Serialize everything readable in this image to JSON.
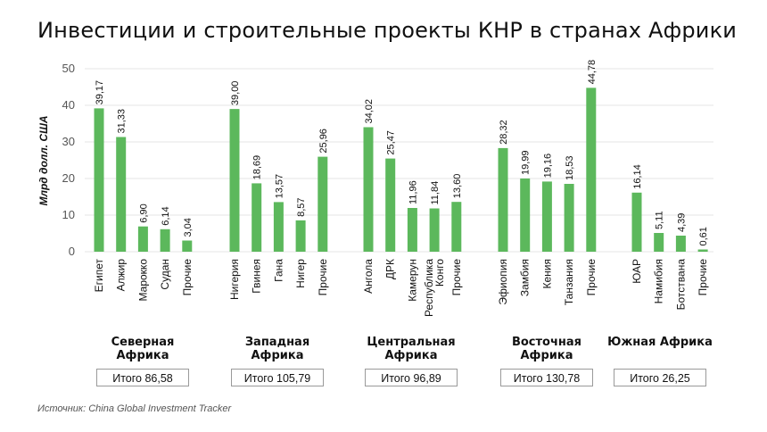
{
  "title": "Инвестиции и строительные проекты КНР в странах Африки",
  "source": "Источник: China Global Investment Tracker",
  "colors": {
    "bar": "#5cb85c",
    "axis_text": "#555555",
    "grid": "#e5e5e5",
    "text": "#111111"
  },
  "chart_data": {
    "type": "bar",
    "title": "Инвестиции и строительные проекты КНР в странах Африки",
    "ylabel": "Млрд долл. США",
    "ylim": [
      0,
      50
    ],
    "yticks": [
      "0",
      "10",
      "20",
      "30",
      "40",
      "50"
    ],
    "grid": false,
    "groups": [
      {
        "region": "Северная Африка",
        "total": "Итого 86,58",
        "categories": [
          "Египет",
          "Алжир",
          "Марокко",
          "Судан",
          "Прочие"
        ],
        "values": [
          39.17,
          31.33,
          6.9,
          6.14,
          3.04
        ],
        "labels": [
          "39,17",
          "31,33",
          "6,90",
          "6,14",
          "3,04"
        ]
      },
      {
        "region": "Западная Африка",
        "total": "Итого 105,79",
        "categories": [
          "Нигерия",
          "Гвинея",
          "Гана",
          "Нигер",
          "Прочие"
        ],
        "values": [
          39.0,
          18.69,
          13.57,
          8.57,
          25.96
        ],
        "labels": [
          "39,00",
          "18,69",
          "13,57",
          "8,57",
          "25,96"
        ]
      },
      {
        "region": "Центральная Африка",
        "total": "Итого 96,89",
        "categories": [
          "Ангола",
          "ДРК",
          "Камерун",
          "Республика Конго",
          "Прочие"
        ],
        "values": [
          34.02,
          25.47,
          11.96,
          11.84,
          13.6
        ],
        "labels": [
          "34,02",
          "25,47",
          "11,96",
          "11,84",
          "13,60"
        ]
      },
      {
        "region": "Восточная Африка",
        "total": "Итого 130,78",
        "categories": [
          "Эфиопия",
          "Замбия",
          "Кения",
          "Танзания",
          "Прочие"
        ],
        "values": [
          28.32,
          19.99,
          19.16,
          18.53,
          44.78
        ],
        "labels": [
          "28,32",
          "19,99",
          "19,16",
          "18,53",
          "44,78"
        ]
      },
      {
        "region": "Южная Африка",
        "total": "Итого 26,25",
        "categories": [
          "ЮАР",
          "Намибия",
          "Ботствана",
          "Прочие"
        ],
        "values": [
          16.14,
          5.11,
          4.39,
          0.61
        ],
        "labels": [
          "16,14",
          "5,11",
          "4,39",
          "0,61"
        ]
      }
    ]
  }
}
